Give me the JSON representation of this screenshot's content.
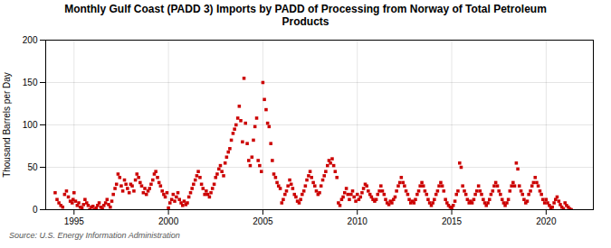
{
  "chart_data": {
    "type": "scatter",
    "title": "Monthly Gulf Coast (PADD 3) Imports by PADD of Processing from Norway of Total Petroleum\nProducts",
    "ylabel": "Thousand Barrels per Day",
    "caption": "Source: U.S. Energy Information Administration",
    "color": "#cc0000",
    "marker": "square",
    "grid": true,
    "xlim": [
      1993.5,
      2022.5
    ],
    "ylim": [
      0,
      200
    ],
    "xticks": [
      1995,
      2000,
      2005,
      2010,
      2015,
      2020
    ],
    "yticks": [
      0,
      50,
      100,
      150,
      200
    ],
    "x": [
      1994.0,
      1994.1,
      1994.2,
      1994.3,
      1994.4,
      1994.5,
      1994.6,
      1994.7,
      1994.8,
      1994.9,
      1994.95,
      1995.0,
      1995.08,
      1995.17,
      1995.25,
      1995.33,
      1995.42,
      1995.5,
      1995.58,
      1995.67,
      1995.75,
      1995.83,
      1995.92,
      1996.0,
      1996.08,
      1996.17,
      1996.25,
      1996.33,
      1996.42,
      1996.5,
      1996.58,
      1996.67,
      1996.75,
      1996.83,
      1996.92,
      1997.0,
      1997.08,
      1997.17,
      1997.25,
      1997.33,
      1997.42,
      1997.5,
      1997.58,
      1997.67,
      1997.75,
      1997.83,
      1997.92,
      1998.0,
      1998.08,
      1998.17,
      1998.25,
      1998.33,
      1998.42,
      1998.5,
      1998.58,
      1998.67,
      1998.75,
      1998.83,
      1998.92,
      1999.0,
      1999.08,
      1999.17,
      1999.25,
      1999.33,
      1999.42,
      1999.5,
      1999.58,
      1999.67,
      1999.75,
      1999.83,
      1999.92,
      2000.0,
      2000.08,
      2000.17,
      2000.25,
      2000.33,
      2000.42,
      2000.5,
      2000.58,
      2000.67,
      2000.75,
      2000.83,
      2000.92,
      2001.0,
      2001.08,
      2001.17,
      2001.25,
      2001.33,
      2001.42,
      2001.5,
      2001.58,
      2001.67,
      2001.75,
      2001.83,
      2001.92,
      2002.0,
      2002.08,
      2002.17,
      2002.25,
      2002.33,
      2002.42,
      2002.5,
      2002.58,
      2002.67,
      2002.75,
      2002.83,
      2002.92,
      2003.0,
      2003.08,
      2003.17,
      2003.25,
      2003.33,
      2003.42,
      2003.5,
      2003.58,
      2003.67,
      2003.75,
      2003.83,
      2003.92,
      2004.0,
      2004.08,
      2004.17,
      2004.25,
      2004.33,
      2004.42,
      2004.5,
      2004.58,
      2004.67,
      2004.75,
      2004.83,
      2004.92,
      2005.0,
      2005.08,
      2005.17,
      2005.25,
      2005.33,
      2005.42,
      2005.5,
      2005.58,
      2005.67,
      2005.75,
      2005.83,
      2005.92,
      2006.0,
      2006.08,
      2006.17,
      2006.25,
      2006.33,
      2006.42,
      2006.5,
      2006.58,
      2006.67,
      2006.75,
      2006.83,
      2006.92,
      2007.0,
      2007.08,
      2007.17,
      2007.25,
      2007.33,
      2007.42,
      2007.5,
      2007.58,
      2007.67,
      2007.75,
      2007.83,
      2007.92,
      2008.0,
      2008.08,
      2008.17,
      2008.25,
      2008.33,
      2008.42,
      2008.5,
      2008.58,
      2008.67,
      2008.75,
      2008.83,
      2008.92,
      2009.0,
      2009.08,
      2009.17,
      2009.25,
      2009.33,
      2009.42,
      2009.5,
      2009.58,
      2009.67,
      2009.75,
      2009.83,
      2009.92,
      2010.0,
      2010.08,
      2010.17,
      2010.25,
      2010.33,
      2010.42,
      2010.5,
      2010.58,
      2010.67,
      2010.75,
      2010.83,
      2010.92,
      2011.0,
      2011.08,
      2011.17,
      2011.25,
      2011.33,
      2011.42,
      2011.5,
      2011.58,
      2011.67,
      2011.75,
      2011.83,
      2011.92,
      2012.0,
      2012.08,
      2012.17,
      2012.25,
      2012.33,
      2012.42,
      2012.5,
      2012.58,
      2012.67,
      2012.75,
      2012.83,
      2012.92,
      2013.0,
      2013.08,
      2013.17,
      2013.25,
      2013.33,
      2013.42,
      2013.5,
      2013.58,
      2013.67,
      2013.75,
      2013.83,
      2013.92,
      2014.0,
      2014.08,
      2014.17,
      2014.25,
      2014.33,
      2014.42,
      2014.5,
      2014.58,
      2014.67,
      2014.75,
      2014.83,
      2014.92,
      2015.0,
      2015.08,
      2015.17,
      2015.25,
      2015.33,
      2015.42,
      2015.5,
      2015.58,
      2015.67,
      2015.75,
      2015.83,
      2015.92,
      2016.0,
      2016.08,
      2016.17,
      2016.25,
      2016.33,
      2016.42,
      2016.5,
      2016.58,
      2016.67,
      2016.75,
      2016.83,
      2016.92,
      2017.0,
      2017.08,
      2017.17,
      2017.25,
      2017.33,
      2017.42,
      2017.5,
      2017.58,
      2017.67,
      2017.75,
      2017.83,
      2017.92,
      2018.0,
      2018.08,
      2018.17,
      2018.25,
      2018.33,
      2018.42,
      2018.5,
      2018.58,
      2018.67,
      2018.75,
      2018.83,
      2018.92,
      2019.0,
      2019.08,
      2019.17,
      2019.25,
      2019.33,
      2019.42,
      2019.5,
      2019.58,
      2019.67,
      2019.75,
      2019.83,
      2019.92,
      2020.0,
      2020.08,
      2020.17,
      2020.25,
      2020.33,
      2020.42,
      2020.5,
      2020.58,
      2020.67,
      2020.75,
      2020.83,
      2020.92,
      2021.0,
      2021.08,
      2021.17,
      2021.25,
      2021.33
    ],
    "values": [
      20,
      12,
      8,
      5,
      3,
      18,
      22,
      15,
      10,
      8,
      12,
      20,
      10,
      5,
      8,
      3,
      2,
      6,
      12,
      8,
      5,
      0,
      3,
      4,
      0,
      2,
      5,
      8,
      3,
      1,
      5,
      8,
      12,
      6,
      3,
      10,
      18,
      25,
      30,
      42,
      38,
      28,
      22,
      35,
      30,
      25,
      20,
      30,
      28,
      22,
      35,
      42,
      38,
      32,
      28,
      20,
      25,
      18,
      22,
      25,
      30,
      35,
      42,
      45,
      38,
      32,
      28,
      22,
      18,
      15,
      20,
      2,
      8,
      12,
      18,
      10,
      15,
      20,
      12,
      8,
      5,
      10,
      6,
      8,
      15,
      20,
      25,
      30,
      35,
      40,
      45,
      38,
      30,
      25,
      18,
      22,
      18,
      15,
      20,
      25,
      30,
      38,
      42,
      48,
      52,
      45,
      40,
      55,
      62,
      68,
      72,
      82,
      90,
      95,
      100,
      108,
      122,
      105,
      80,
      155,
      102,
      78,
      58,
      52,
      62,
      82,
      98,
      108,
      58,
      52,
      45,
      150,
      130,
      118,
      102,
      98,
      78,
      58,
      42,
      38,
      32,
      28,
      25,
      8,
      12,
      18,
      22,
      28,
      35,
      30,
      25,
      18,
      15,
      10,
      8,
      12,
      18,
      22,
      28,
      35,
      40,
      45,
      38,
      32,
      28,
      22,
      18,
      20,
      28,
      35,
      40,
      45,
      52,
      58,
      55,
      60,
      52,
      45,
      38,
      8,
      5,
      12,
      15,
      20,
      25,
      18,
      12,
      18,
      22,
      15,
      10,
      18,
      12,
      15,
      20,
      25,
      30,
      28,
      22,
      18,
      15,
      12,
      10,
      12,
      18,
      22,
      28,
      22,
      18,
      12,
      8,
      6,
      10,
      8,
      12,
      15,
      22,
      28,
      32,
      38,
      32,
      28,
      22,
      18,
      12,
      8,
      10,
      8,
      12,
      18,
      22,
      28,
      32,
      28,
      22,
      18,
      12,
      8,
      5,
      8,
      12,
      18,
      22,
      28,
      32,
      28,
      22,
      12,
      8,
      5,
      3,
      2,
      5,
      10,
      18,
      22,
      55,
      50,
      28,
      22,
      18,
      12,
      8,
      10,
      8,
      12,
      18,
      22,
      28,
      22,
      18,
      12,
      8,
      5,
      8,
      12,
      18,
      22,
      28,
      32,
      28,
      22,
      18,
      12,
      8,
      5,
      8,
      12,
      22,
      28,
      32,
      28,
      55,
      48,
      28,
      22,
      18,
      12,
      8,
      10,
      18,
      22,
      28,
      32,
      38,
      32,
      28,
      22,
      18,
      12,
      8,
      12,
      8,
      5,
      2,
      3,
      8,
      12,
      15,
      10,
      6,
      3,
      1,
      8,
      5,
      3,
      1,
      0
    ]
  }
}
